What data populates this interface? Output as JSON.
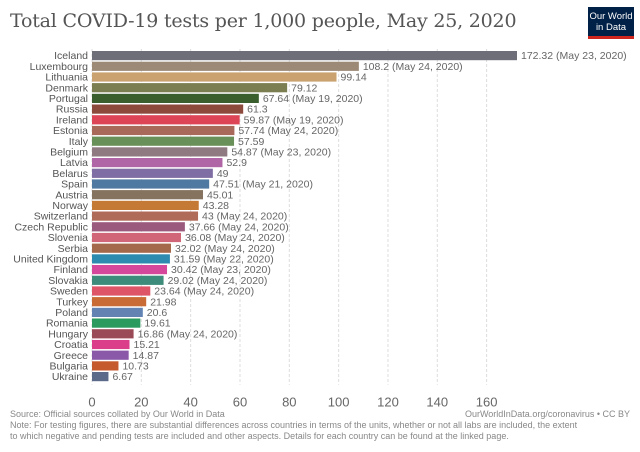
{
  "header": {
    "title": "Total COVID-19 tests per 1,000 people, May 25, 2020",
    "logo_line1": "Our World",
    "logo_line2": "in Data"
  },
  "footer": {
    "source": "Source: Official sources collated by Our World in Data",
    "credit": "OurWorldInData.org/coronavirus • CC BY",
    "note_line1": "Note: For testing figures, there are substantial differences across countries in terms of the units, whether or not all labs are included, the extent",
    "note_line2": "to which negative and pending tests are included and other aspects. Details for each country can be found at the linked page."
  },
  "chart_data": {
    "type": "bar",
    "orientation": "horizontal",
    "title": "Total COVID-19 tests per 1,000 people, May 25, 2020",
    "xlabel": "",
    "ylabel": "",
    "xlim": [
      0,
      172.32
    ],
    "xticks": [
      0,
      20,
      40,
      60,
      80,
      100,
      120,
      140,
      160
    ],
    "grid": "vertical dashed",
    "categories": [
      "Iceland",
      "Luxembourg",
      "Lithuania",
      "Denmark",
      "Portugal",
      "Russia",
      "Ireland",
      "Estonia",
      "Italy",
      "Belgium",
      "Latvia",
      "Belarus",
      "Spain",
      "Austria",
      "Norway",
      "Switzerland",
      "Czech Republic",
      "Slovenia",
      "Serbia",
      "United Kingdom",
      "Finland",
      "Slovakia",
      "Sweden",
      "Turkey",
      "Poland",
      "Romania",
      "Hungary",
      "Croatia",
      "Greece",
      "Bulgaria",
      "Ukraine"
    ],
    "values": [
      172.32,
      108.2,
      99.14,
      79.12,
      67.64,
      61.3,
      59.87,
      57.74,
      57.59,
      54.87,
      52.9,
      49,
      47.51,
      45.01,
      43.28,
      43,
      37.66,
      36.08,
      32.02,
      31.59,
      30.42,
      29.02,
      23.64,
      21.98,
      20.6,
      19.61,
      16.86,
      15.21,
      14.87,
      10.73,
      6.67
    ],
    "value_labels": [
      "172.32 (May 23, 2020)",
      "108.2 (May 24, 2020)",
      "99.14",
      "79.12",
      "67.64 (May 19, 2020)",
      "61.3",
      "59.87 (May 19, 2020)",
      "57.74 (May 24, 2020)",
      "57.59",
      "54.87 (May 23, 2020)",
      "52.9",
      "49",
      "47.51 (May 21, 2020)",
      "45.01",
      "43.28",
      "43 (May 24, 2020)",
      "37.66 (May 24, 2020)",
      "36.08 (May 24, 2020)",
      "32.02 (May 24, 2020)",
      "31.59 (May 22, 2020)",
      "30.42 (May 23, 2020)",
      "29.02 (May 24, 2020)",
      "23.64 (May 24, 2020)",
      "21.98",
      "20.6",
      "19.61",
      "16.86 (May 24, 2020)",
      "15.21",
      "14.87",
      "10.73",
      "6.67"
    ],
    "colors": [
      "#6d6e78",
      "#9c8a76",
      "#c9a26f",
      "#7b7e50",
      "#3a5e2d",
      "#8c4a3c",
      "#dd4455",
      "#a8695a",
      "#6a9059",
      "#8e7a80",
      "#b066a6",
      "#7f6ea3",
      "#4f79a0",
      "#85725f",
      "#c47a35",
      "#b06a58",
      "#9a5a7e",
      "#d06677",
      "#a4694a",
      "#2e8bb0",
      "#d5479a",
      "#3d8b7a",
      "#dd5566",
      "#c86b35",
      "#6384b3",
      "#2a9a5e",
      "#9a4a56",
      "#db3d8a",
      "#8a5aa8",
      "#c45a2e",
      "#5a6a88"
    ]
  }
}
